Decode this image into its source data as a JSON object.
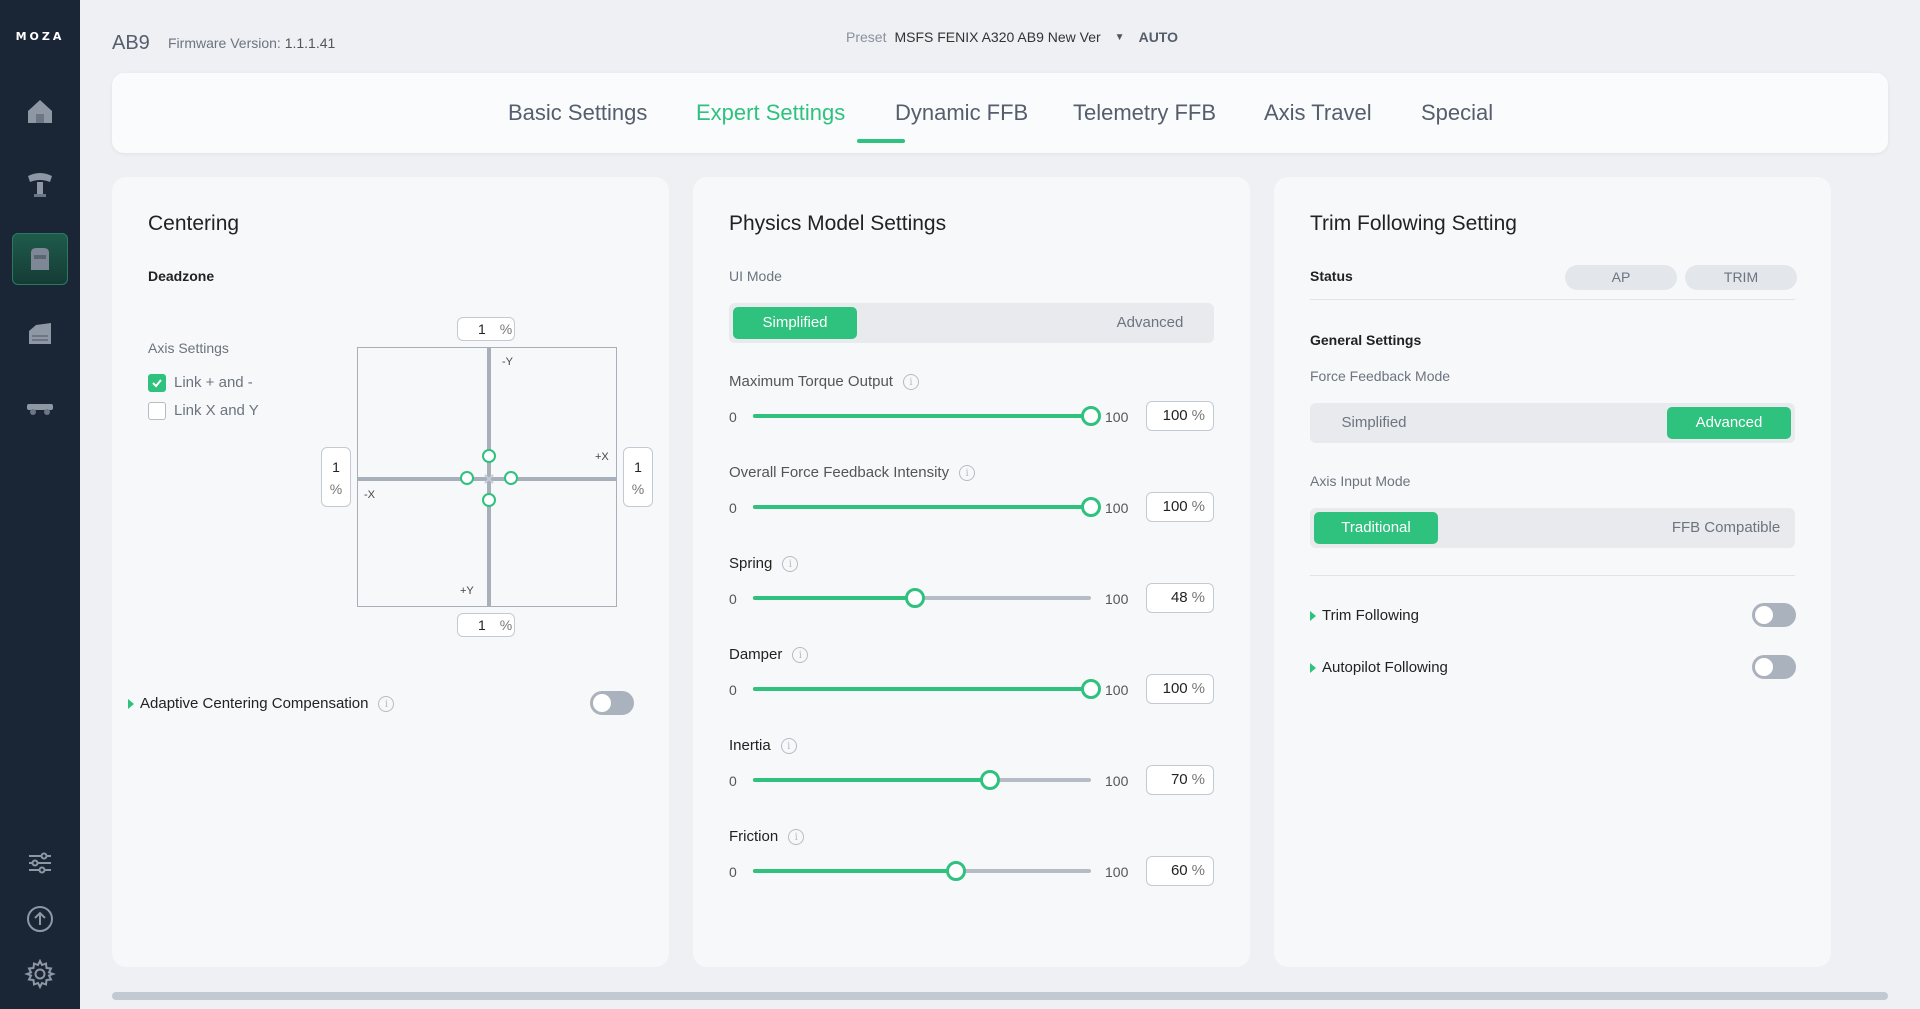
{
  "sidebar": {
    "logo": "MOZA",
    "icons": [
      "home-icon",
      "dashboard-device-icon",
      "base-device-icon",
      "throttle-icon",
      "pedals-icon",
      "sliders-icon",
      "upload-icon",
      "settings-gear-icon"
    ],
    "active": "base-device-icon"
  },
  "header": {
    "device": "AB9",
    "firmware_label": "Firmware Version:",
    "firmware_value": "1.1.1.41",
    "preset_label": "Preset",
    "preset_value": "MSFS FENIX A320 AB9 New Ver",
    "auto_label": "AUTO"
  },
  "tabs": [
    {
      "label": "Basic Settings"
    },
    {
      "label": "Expert Settings",
      "active": true
    },
    {
      "label": "Dynamic FFB"
    },
    {
      "label": "Telemetry FFB"
    },
    {
      "label": "Axis Travel"
    },
    {
      "label": "Special"
    }
  ],
  "centering": {
    "title": "Centering",
    "deadzone_label": "Deadzone",
    "axis_settings_label": "Axis Settings",
    "link_plus_minus": {
      "label": "Link + and -",
      "checked": true
    },
    "link_xy": {
      "label": "Link X and Y",
      "checked": false
    },
    "deadzone": {
      "top": "1",
      "bottom": "1",
      "left": "1",
      "right": "1",
      "unit": "%"
    },
    "axis_labels": {
      "neg_y": "-Y",
      "pos_y": "+Y",
      "neg_x": "-X",
      "pos_x": "+X"
    },
    "adaptive_label": "Adaptive Centering Compensation",
    "adaptive_on": false
  },
  "physics": {
    "title": "Physics Model Settings",
    "ui_mode_label": "UI Mode",
    "ui_mode_options": [
      "Simplified",
      "Advanced"
    ],
    "ui_mode_selected": "Simplified",
    "sliders": [
      {
        "label": "Maximum Torque Output",
        "min": "0",
        "max": "100",
        "value": "100",
        "unit": "%",
        "fraction": 1.0
      },
      {
        "label": "Overall Force Feedback Intensity",
        "min": "0",
        "max": "100",
        "value": "100",
        "unit": "%",
        "fraction": 1.0
      },
      {
        "label": "Spring",
        "min": "0",
        "max": "100",
        "value": "48",
        "unit": "%",
        "fraction": 0.48
      },
      {
        "label": "Damper",
        "min": "0",
        "max": "100",
        "value": "100",
        "unit": "%",
        "fraction": 1.0
      },
      {
        "label": "Inertia",
        "min": "0",
        "max": "100",
        "value": "70",
        "unit": "%",
        "fraction": 0.7
      },
      {
        "label": "Friction",
        "min": "0",
        "max": "100",
        "value": "60",
        "unit": "%",
        "fraction": 0.6
      }
    ]
  },
  "trim": {
    "title": "Trim Following Setting",
    "status_label": "Status",
    "status_pills": [
      "AP",
      "TRIM"
    ],
    "general_label": "General Settings",
    "ffb_mode_label": "Force Feedback Mode",
    "ffb_mode_options": [
      "Simplified",
      "Advanced"
    ],
    "ffb_mode_selected": "Advanced",
    "axis_input_label": "Axis Input Mode",
    "axis_input_options": [
      "Traditional",
      "FFB Compatible"
    ],
    "axis_input_selected": "Traditional",
    "trim_following_label": "Trim Following",
    "trim_following_on": false,
    "autopilot_following_label": "Autopilot Following",
    "autopilot_following_on": false
  },
  "colors": {
    "accent": "#2ec27e",
    "sidebar_bg": "#1a2535",
    "page_bg": "#eef0f3"
  }
}
